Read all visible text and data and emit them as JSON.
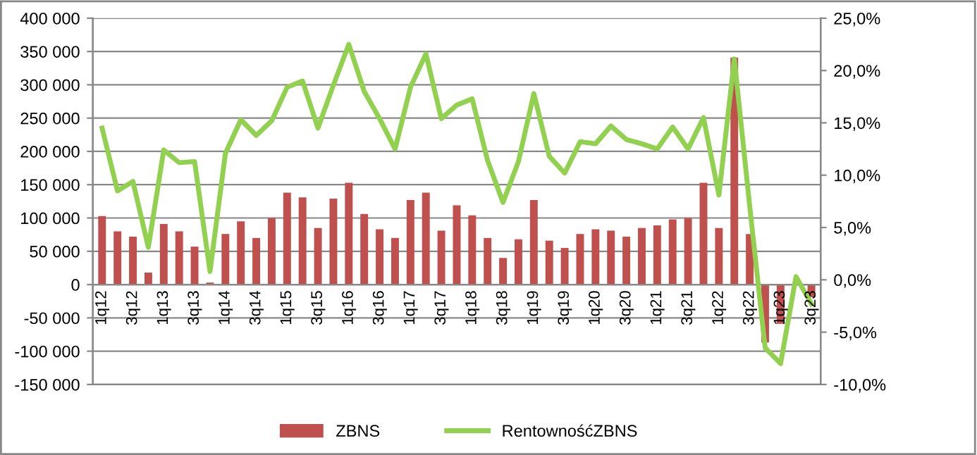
{
  "chart_data": {
    "type": "bar",
    "categories": [
      "1q12",
      null,
      "3q12",
      null,
      "1q13",
      null,
      "3q13",
      null,
      "1q14",
      null,
      "3q14",
      null,
      "1q15",
      null,
      "3q15",
      null,
      "1q16",
      null,
      "3q16",
      null,
      "1q17",
      null,
      "3q17",
      null,
      "1q18",
      null,
      "3q18",
      null,
      "1q19",
      null,
      "3q19",
      null,
      "1q20",
      null,
      "3q20",
      null,
      "1q21",
      null,
      "3q21",
      null,
      "1q22",
      null,
      "3q22",
      null,
      "1q23",
      null,
      "3q23"
    ],
    "series": [
      {
        "name": "ZBNS",
        "color": "#c0504d",
        "values": [
          103000,
          80000,
          72000,
          18000,
          91000,
          80000,
          57000,
          3000,
          76000,
          95000,
          70000,
          100000,
          138000,
          131000,
          85000,
          129000,
          153000,
          106000,
          83000,
          70000,
          127000,
          138000,
          81000,
          119000,
          104000,
          70000,
          40000,
          68000,
          127000,
          66000,
          55000,
          76000,
          83000,
          81000,
          72000,
          85000,
          89000,
          98000,
          100000,
          153000,
          85000,
          341000,
          76000,
          -87000,
          -59000,
          1000,
          -19000
        ]
      },
      {
        "name": "RentownośćZBNS",
        "type": "line",
        "axis": "y2",
        "color": "#92d050",
        "values": [
          14.5,
          8.5,
          9.4,
          3.1,
          12.4,
          11.2,
          11.3,
          0.8,
          12.1,
          15.3,
          13.8,
          15.2,
          18.4,
          19.0,
          14.5,
          18.6,
          22.5,
          18.0,
          15.4,
          12.5,
          18.4,
          21.6,
          15.4,
          16.7,
          17.3,
          11.4,
          7.4,
          11.3,
          17.8,
          11.8,
          10.2,
          13.2,
          13.0,
          14.7,
          13.4,
          13.0,
          12.5,
          14.6,
          12.5,
          15.5,
          8.1,
          21.1,
          7.0,
          -6.5,
          -8.0,
          0.3,
          -2.3
        ]
      }
    ],
    "ylim": [
      -150000,
      400000
    ],
    "yticks": [
      {
        "value": -150000,
        "label": "-150 000"
      },
      {
        "value": -100000,
        "label": "-100 000"
      },
      {
        "value": -50000,
        "label": "-50 000"
      },
      0,
      {
        "value": 50000,
        "label": "50 000"
      },
      {
        "value": 100000,
        "label": "100 000"
      },
      {
        "value": 150000,
        "label": "150 000"
      },
      {
        "value": 200000,
        "label": "200 000"
      },
      {
        "value": 250000,
        "label": "250 000"
      },
      {
        "value": 300000,
        "label": "300 000"
      },
      {
        "value": 350000,
        "label": "350 000"
      },
      {
        "value": 400000,
        "label": "400 000"
      }
    ],
    "y2lim": [
      -10,
      25
    ],
    "y2ticks": [
      {
        "value": -10,
        "label": "-10,0%"
      },
      {
        "value": -5,
        "label": "-5,0%"
      },
      {
        "value": 0,
        "label": "0,0%"
      },
      {
        "value": 5,
        "label": "5,0%"
      },
      {
        "value": 10,
        "label": "10,0%"
      },
      {
        "value": 15,
        "label": "15,0%"
      },
      {
        "value": 20,
        "label": "20,0%"
      },
      {
        "value": 25,
        "label": "25,0%"
      }
    ],
    "grid": "y",
    "legend": "bottom",
    "marker": "none",
    "line_style": "solid"
  }
}
